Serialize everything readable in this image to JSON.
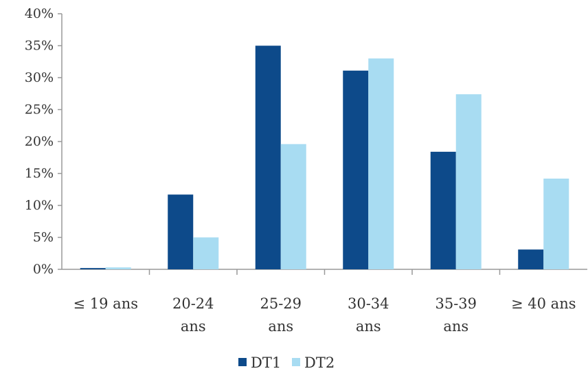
{
  "chart_data": {
    "type": "bar",
    "categories": [
      [
        "≤ 19 ans"
      ],
      [
        "20-24",
        "ans"
      ],
      [
        "25-29",
        "ans"
      ],
      [
        "30-34",
        "ans"
      ],
      [
        "35-39",
        "ans"
      ],
      [
        "≥ 40 ans"
      ]
    ],
    "series": [
      {
        "name": "DT1",
        "color": "#0d4a8a",
        "values": [
          0.2,
          11.7,
          35.0,
          31.1,
          18.4,
          3.1
        ]
      },
      {
        "name": "DT2",
        "color": "#a8dcf2",
        "values": [
          0.3,
          5.0,
          19.6,
          33.0,
          27.4,
          14.2
        ]
      }
    ],
    "ylim": [
      0,
      40
    ],
    "ytick_step": 5,
    "ytick_suffix": "%",
    "grid": false,
    "legend": "bottom-center",
    "axis_color": "#999999"
  }
}
